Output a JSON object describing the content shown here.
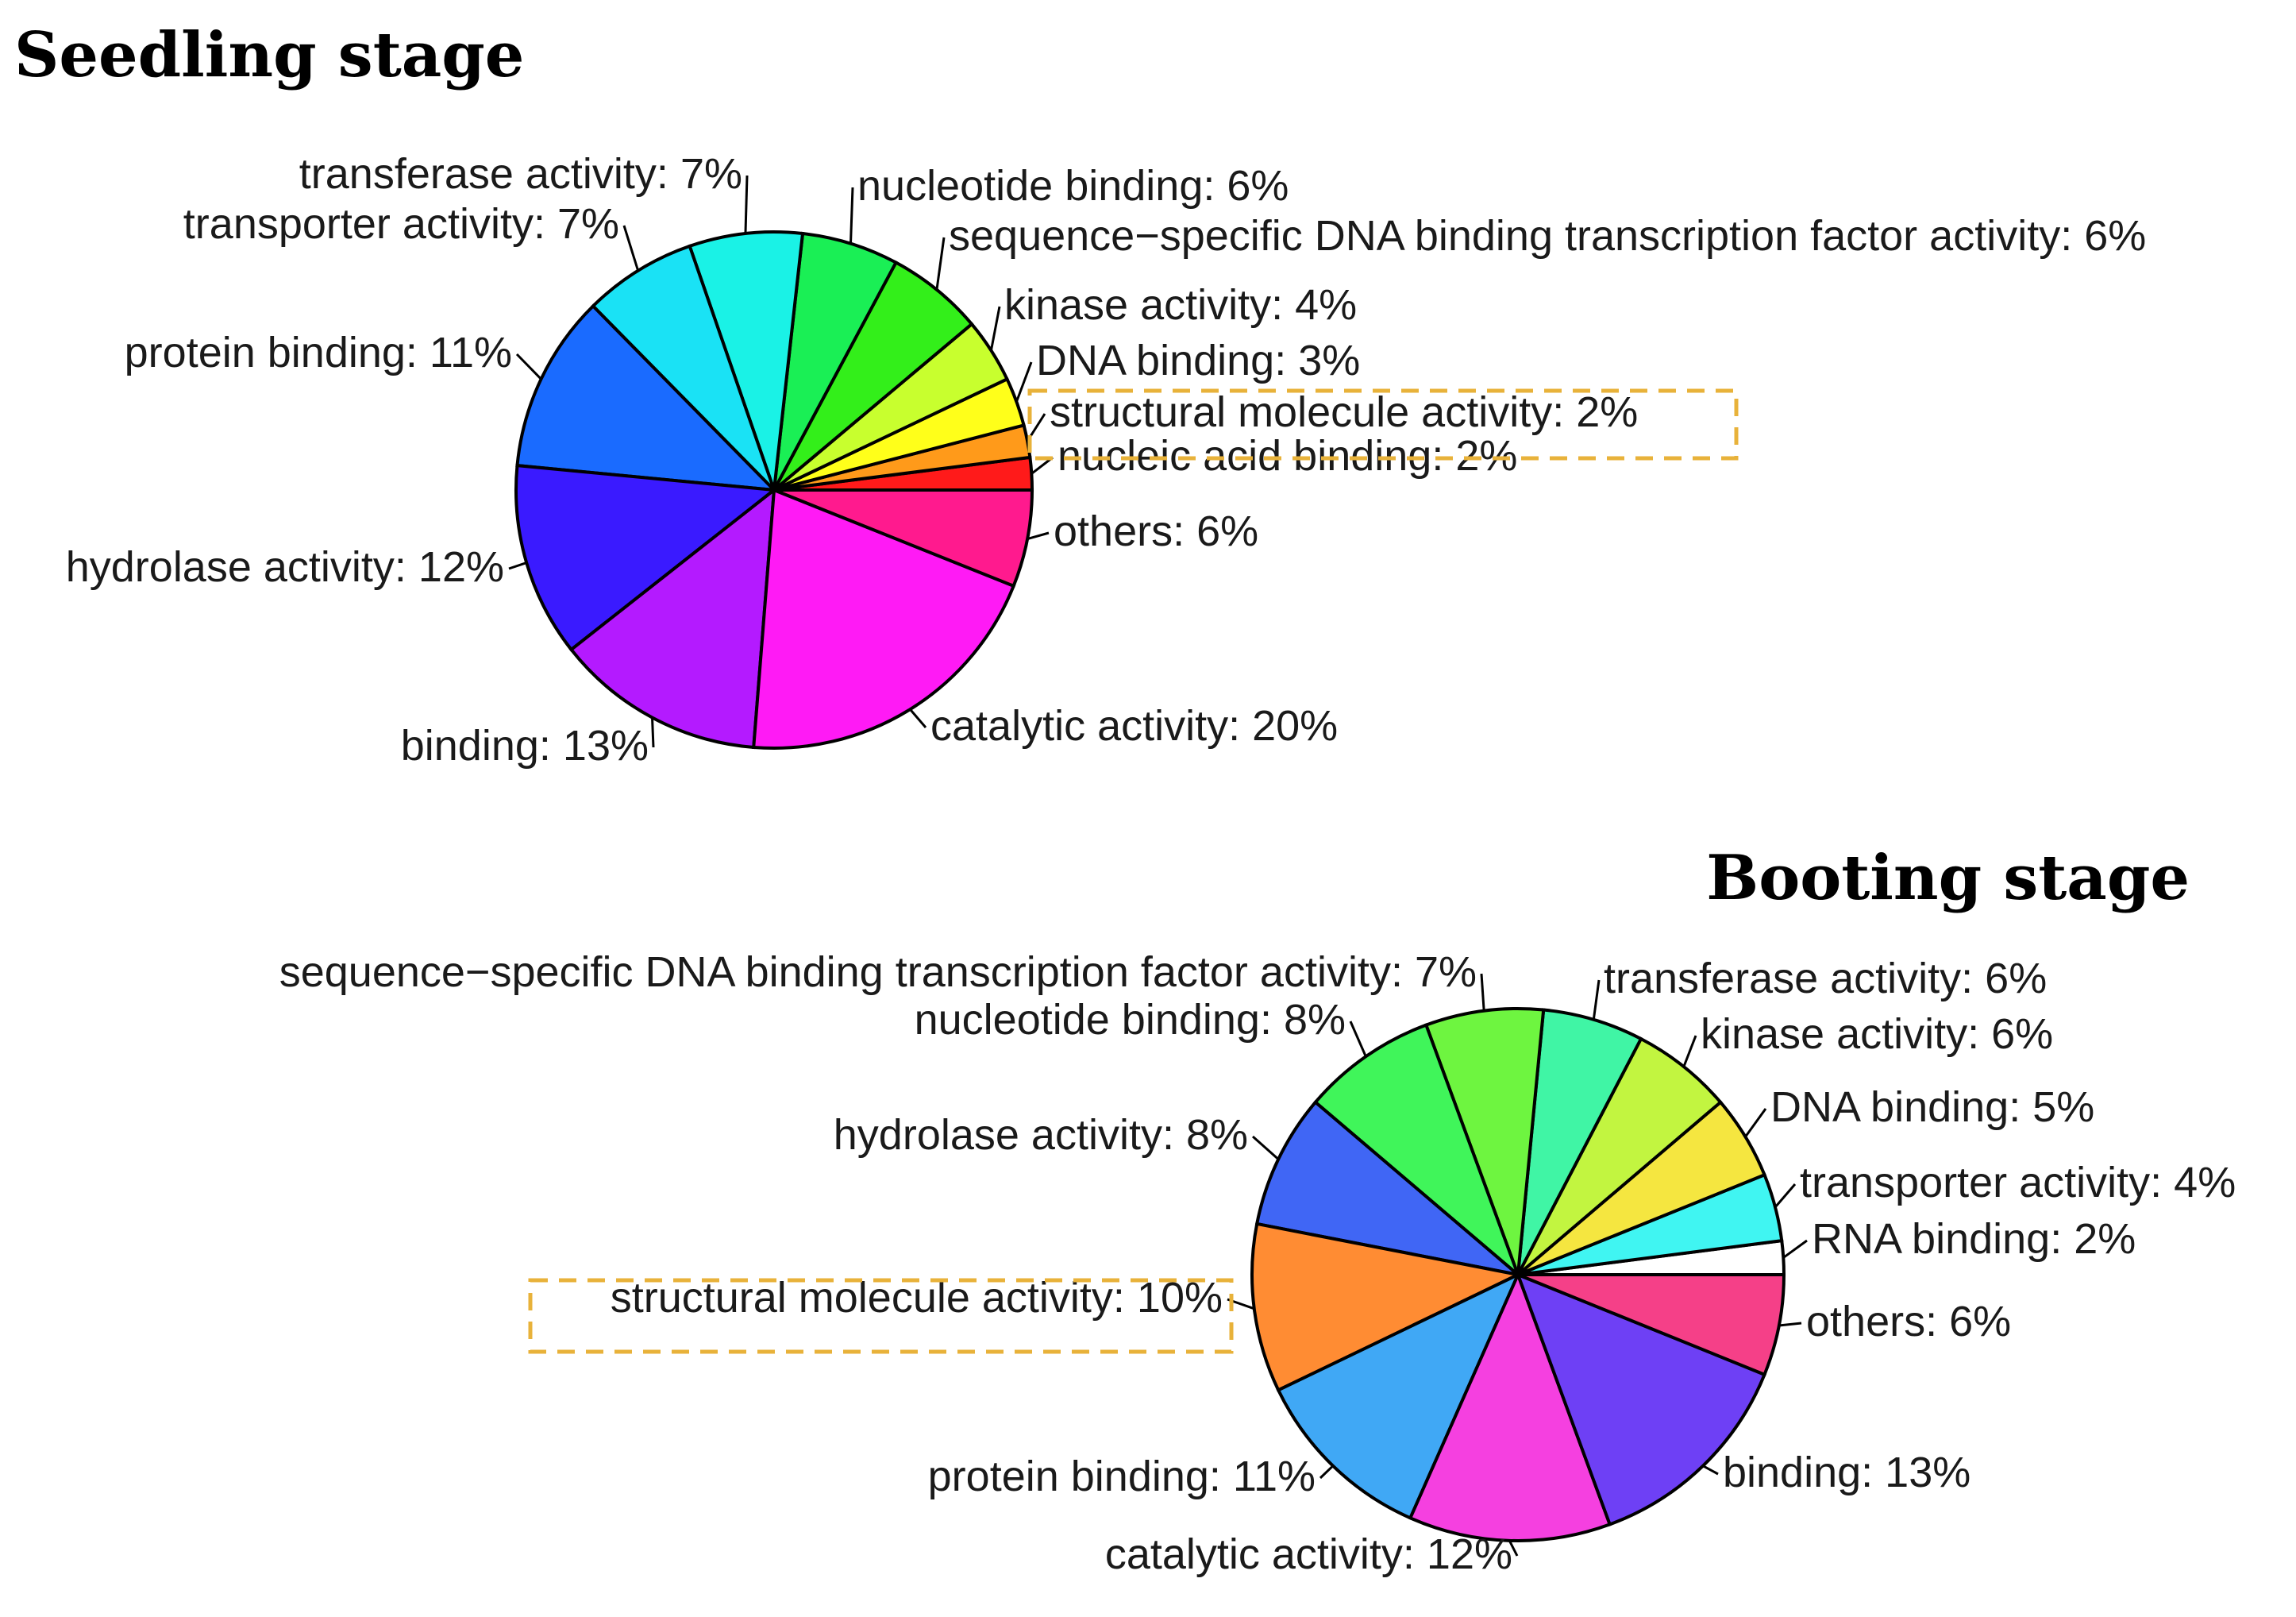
{
  "chart_data": [
    {
      "type": "pie",
      "title": "Seedling stage",
      "highlight": "structural molecule activity",
      "slices": [
        {
          "label": "nucleic acid binding",
          "value": 2,
          "color": "#ff1a1a"
        },
        {
          "label": "structural molecule activity",
          "value": 2,
          "color": "#ff9a1a"
        },
        {
          "label": "DNA binding",
          "value": 3,
          "color": "#ffff1a"
        },
        {
          "label": "kinase activity",
          "value": 4,
          "color": "#c8ff2e"
        },
        {
          "label": "sequence−specific DNA binding transcription factor activity",
          "value": 6,
          "color": "#33ef1a"
        },
        {
          "label": "nucleotide binding",
          "value": 6,
          "color": "#1aef55"
        },
        {
          "label": "transferase activity",
          "value": 7,
          "color": "#1af2e6"
        },
        {
          "label": "transporter activity",
          "value": 7,
          "color": "#1ae2f5"
        },
        {
          "label": "protein binding",
          "value": 11,
          "color": "#1a6bff"
        },
        {
          "label": "hydrolase activity",
          "value": 12,
          "color": "#3a1aff"
        },
        {
          "label": "binding",
          "value": 13,
          "color": "#b41aff"
        },
        {
          "label": "catalytic activity",
          "value": 20,
          "color": "#ff1af5"
        },
        {
          "label": "others",
          "value": 6,
          "color": "#ff1a8e"
        }
      ],
      "label_texts": {
        "nucleic acid binding": "nucleic acid binding: 2%",
        "structural molecule activity": "structural molecule activity: 2%",
        "DNA binding": "DNA binding: 3%",
        "kinase activity": "kinase activity: 4%",
        "sequence−specific DNA binding transcription factor activity": "sequence−specific DNA binding transcription factor activity: 6%",
        "nucleotide binding": "nucleotide binding: 6%",
        "transferase activity": "transferase activity: 7%",
        "transporter activity": "transporter activity: 7%",
        "protein binding": "protein binding: 11%",
        "hydrolase activity": "hydrolase activity: 12%",
        "binding": "binding: 13%",
        "catalytic activity": "catalytic activity: 20%",
        "others": "others: 6%"
      }
    },
    {
      "type": "pie",
      "title": "Booting stage",
      "highlight": "structural molecule activity",
      "slices": [
        {
          "label": "RNA binding",
          "value": 2,
          "color": "#ffffff"
        },
        {
          "label": "transporter activity",
          "value": 4,
          "color": "#40f5f2"
        },
        {
          "label": "DNA binding",
          "value": 5,
          "color": "#f5e640"
        },
        {
          "label": "kinase activity",
          "value": 6,
          "color": "#c2f540"
        },
        {
          "label": "transferase activity",
          "value": 6,
          "color": "#40f5a5"
        },
        {
          "label": "sequence−specific DNA binding transcription factor activity",
          "value": 7,
          "color": "#6ef540"
        },
        {
          "label": "nucleotide binding",
          "value": 8,
          "color": "#40f55a"
        },
        {
          "label": "hydrolase activity",
          "value": 8,
          "color": "#4066f5"
        },
        {
          "label": "structural molecule activity",
          "value": 10,
          "color": "#ff8c33"
        },
        {
          "label": "protein binding",
          "value": 11,
          "color": "#40a8f5"
        },
        {
          "label": "catalytic activity",
          "value": 12,
          "color": "#f540e0"
        },
        {
          "label": "binding",
          "value": 13,
          "color": "#6e40f5"
        },
        {
          "label": "others",
          "value": 6,
          "color": "#f54088"
        }
      ],
      "label_texts": {
        "RNA binding": "RNA binding: 2%",
        "transporter activity": "transporter activity: 4%",
        "DNA binding": "DNA binding: 5%",
        "kinase activity": "kinase activity: 6%",
        "transferase activity": "transferase activity: 6%",
        "sequence−specific DNA binding transcription factor activity": "sequence−specific DNA binding transcription factor activity: 7%",
        "nucleotide binding": "nucleotide binding: 8%",
        "hydrolase activity": "hydrolase activity: 8%",
        "structural molecule activity": "structural molecule activity: 10%",
        "protein binding": "protein binding: 11%",
        "catalytic activity": "catalytic activity: 12%",
        "binding": "binding: 13%",
        "others": "others: 6%"
      }
    }
  ]
}
